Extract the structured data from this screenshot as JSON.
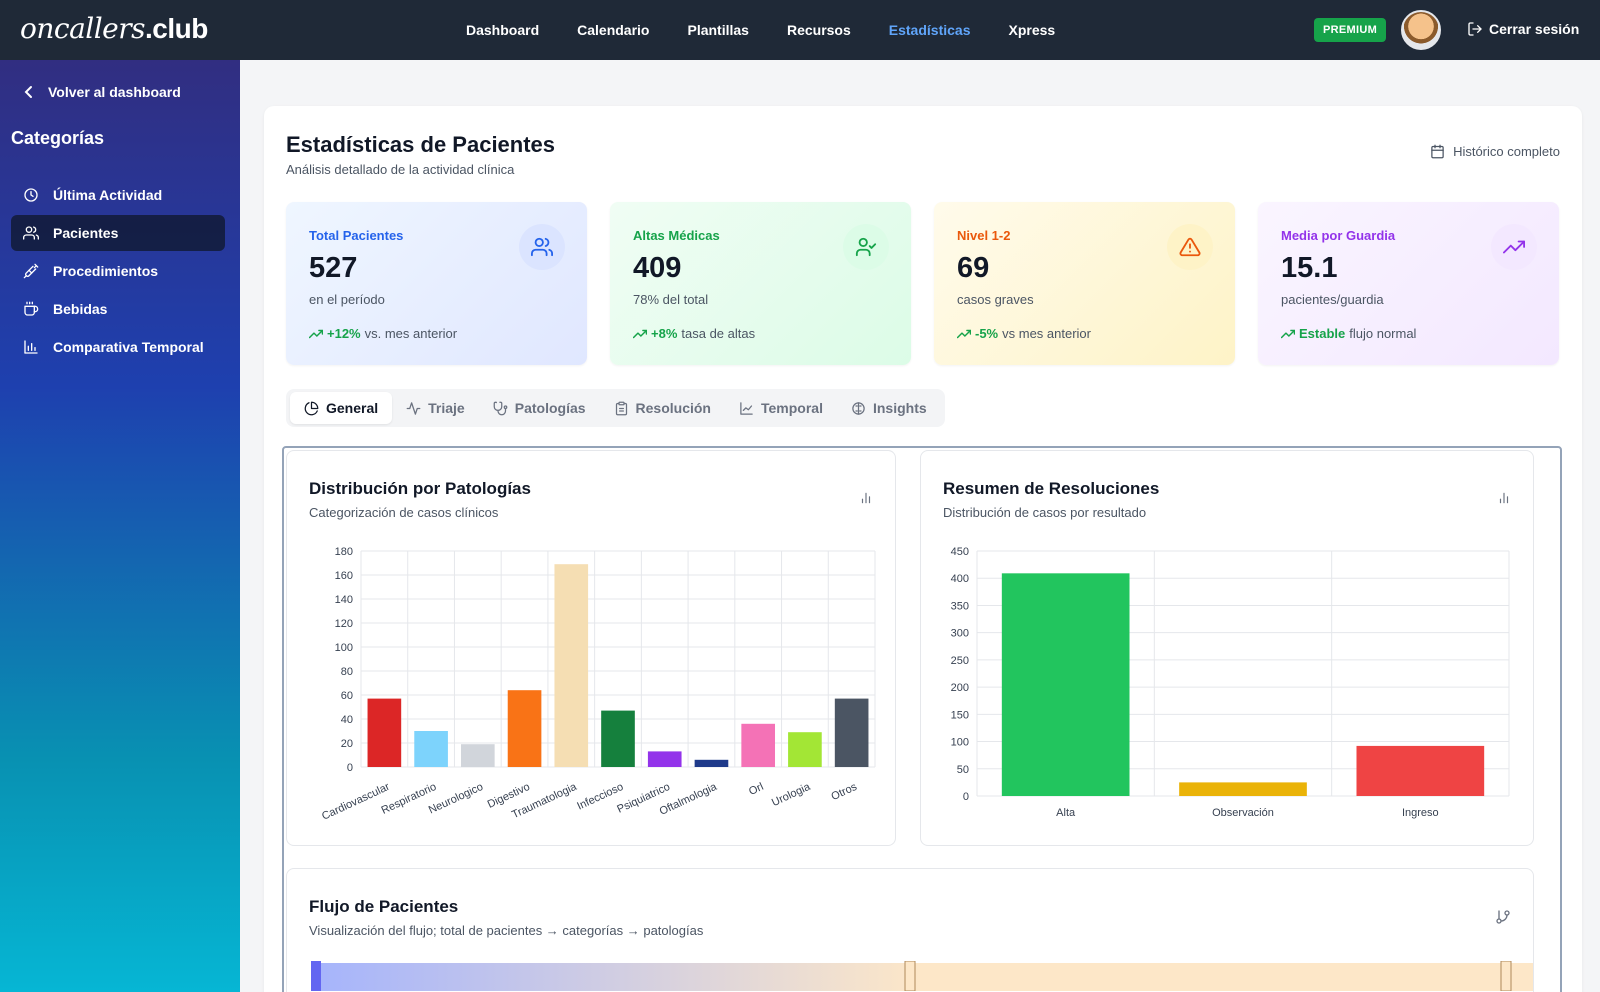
{
  "app": {
    "logo_script": "oncallers",
    "logo_bold": ".club",
    "nav": [
      {
        "label": "Dashboard",
        "active": false
      },
      {
        "label": "Calendario",
        "active": false
      },
      {
        "label": "Plantillas",
        "active": false
      },
      {
        "label": "Recursos",
        "active": false
      },
      {
        "label": "Estadísticas",
        "active": true
      },
      {
        "label": "Xpress",
        "active": false
      }
    ],
    "premium_badge": "PREMIUM",
    "logout_label": "Cerrar sesión"
  },
  "sidebar": {
    "back_label": "Volver al dashboard",
    "section_title": "Categorías",
    "items": [
      {
        "label": "Última Actividad",
        "icon": "clock-icon",
        "active": false
      },
      {
        "label": "Pacientes",
        "icon": "users-icon",
        "active": true
      },
      {
        "label": "Procedimientos",
        "icon": "syringe-icon",
        "active": false
      },
      {
        "label": "Bebidas",
        "icon": "cup-icon",
        "active": false
      },
      {
        "label": "Comparativa Temporal",
        "icon": "bar-chart-icon",
        "active": false
      }
    ]
  },
  "page": {
    "title": "Estadísticas de Pacientes",
    "subtitle": "Análisis detallado de la actividad clínica",
    "range_label": "Histórico completo"
  },
  "cards": [
    {
      "label": "Total Pacientes",
      "value": "527",
      "sub": "en el período",
      "trend_value": "+12%",
      "trend_text": "vs. mes anterior",
      "icon": "users-icon",
      "icon_color": "#2563eb"
    },
    {
      "label": "Altas Médicas",
      "value": "409",
      "sub": "78% del total",
      "trend_value": "+8%",
      "trend_text": "tasa de altas",
      "icon": "user-check-icon",
      "icon_color": "#16a34a"
    },
    {
      "label": "Nivel 1-2",
      "value": "69",
      "sub": "casos graves",
      "trend_value": "-5%",
      "trend_text": "vs mes anterior",
      "icon": "warning-icon",
      "icon_color": "#ea580c"
    },
    {
      "label": "Media por Guardia",
      "value": "15.1",
      "sub": "pacientes/guardia",
      "trend_value": "Estable",
      "trend_text": "flujo normal",
      "icon": "trending-up-icon",
      "icon_color": "#9333ea"
    }
  ],
  "tabs": [
    {
      "label": "General",
      "icon": "pie-icon",
      "active": true
    },
    {
      "label": "Triaje",
      "icon": "activity-icon",
      "active": false
    },
    {
      "label": "Patologías",
      "icon": "stethoscope-icon",
      "active": false
    },
    {
      "label": "Resolución",
      "icon": "clipboard-icon",
      "active": false
    },
    {
      "label": "Temporal",
      "icon": "line-chart-icon",
      "active": false
    },
    {
      "label": "Insights",
      "icon": "brain-icon",
      "active": false
    }
  ],
  "panels": {
    "pathology": {
      "title": "Distribución por Patologías",
      "subtitle": "Categorización de casos clínicos"
    },
    "resolution": {
      "title": "Resumen de Resoluciones",
      "subtitle": "Distribución de casos por resultado"
    },
    "flow": {
      "title": "Flujo de Pacientes",
      "subtitle": "Visualización del flujo; total de pacientes → categorías → patologías"
    }
  },
  "chart_data": [
    {
      "type": "bar",
      "title": "Distribución por Patologías",
      "categories": [
        "Cardiovascular",
        "Respiratorio",
        "Neurologico",
        "Digestivo",
        "Traumatologia",
        "Infeccioso",
        "Psiquiatrico",
        "Oftalmologia",
        "Orl",
        "Urologia",
        "Otros"
      ],
      "values": [
        57,
        30,
        19,
        64,
        169,
        47,
        13,
        6,
        36,
        29,
        57
      ],
      "colors": [
        "#dc2626",
        "#7dd3fc",
        "#d1d5db",
        "#f97316",
        "#f5deb3",
        "#15803d",
        "#9333ea",
        "#1e3a8a",
        "#f472b6",
        "#a3e635",
        "#4b5563"
      ],
      "ylim": [
        0,
        180
      ],
      "yticks": [
        0,
        20,
        40,
        60,
        80,
        100,
        120,
        140,
        160,
        180
      ],
      "grid": true
    },
    {
      "type": "bar",
      "title": "Resumen de Resoluciones",
      "categories": [
        "Alta",
        "Observación",
        "Ingreso"
      ],
      "values": [
        409,
        25,
        92
      ],
      "colors": [
        "#22c55e",
        "#eab308",
        "#ef4444"
      ],
      "ylim": [
        0,
        450
      ],
      "yticks": [
        0,
        50,
        100,
        150,
        200,
        250,
        300,
        350,
        400,
        450
      ],
      "grid": true
    }
  ]
}
